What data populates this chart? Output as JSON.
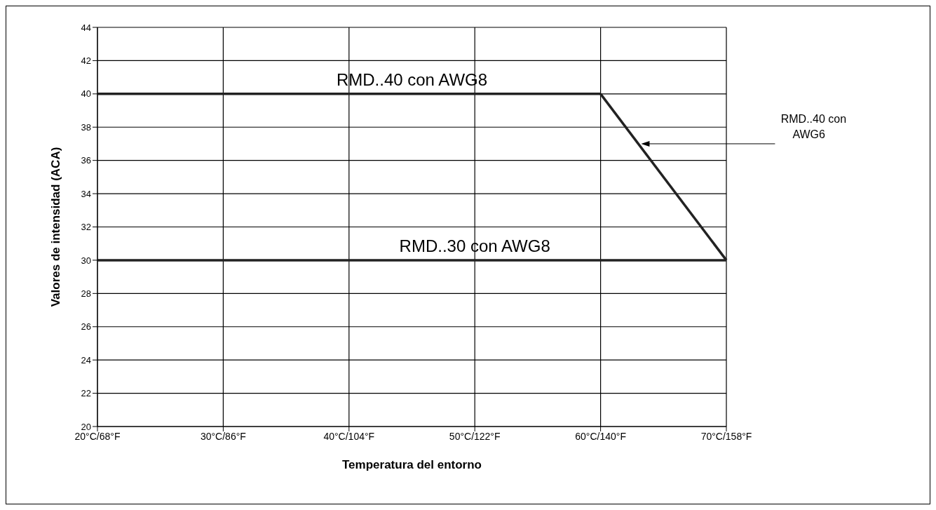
{
  "chart_data": {
    "type": "line",
    "xlabel": "Temperatura del entorno",
    "ylabel": "Valores de intensidad (ACA)",
    "categories": [
      "20°C/68°F",
      "30°C/86°F",
      "40°C/104°F",
      "50°C/122°F",
      "60°C/140°F",
      "70°C/158°F"
    ],
    "series": [
      {
        "name": "RMD..40 con AWG8",
        "color": "#222222",
        "values": [
          40,
          40,
          40,
          40,
          40,
          null
        ]
      },
      {
        "name": "RMD..40 con AWG6",
        "color": "#222222",
        "values": [
          null,
          null,
          null,
          null,
          40,
          30
        ]
      },
      {
        "name": "RMD..30 con AWG8",
        "color": "#222222",
        "values": [
          30,
          30,
          30,
          30,
          30,
          30
        ]
      }
    ],
    "ylim": [
      20,
      44
    ],
    "yticks": [
      20,
      22,
      24,
      26,
      28,
      30,
      32,
      34,
      36,
      38,
      40,
      42,
      44
    ],
    "grid": true,
    "legend": false,
    "marker": "none",
    "line_style": "solid"
  }
}
